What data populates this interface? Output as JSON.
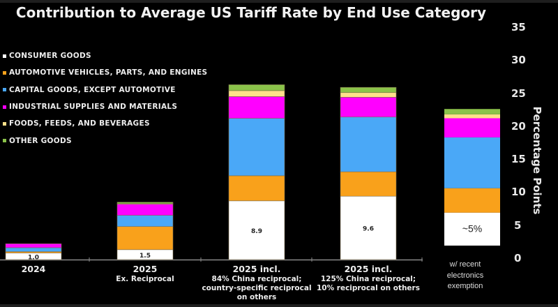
{
  "chart_data": {
    "type": "bar",
    "stacked": true,
    "title": "Contribution to Average US Tariff Rate by End Use Category",
    "ylabel": "Percentage Points",
    "xlabel": "",
    "ylim": [
      0,
      35
    ],
    "yticks": [
      "0",
      "5",
      "10",
      "15",
      "20",
      "25",
      "30",
      "35"
    ],
    "grid": false,
    "legend_position": "top-left",
    "categories": [
      {
        "main": "2024",
        "sub": []
      },
      {
        "main": "2025",
        "sub": [
          "Ex. Reciprocal"
        ]
      },
      {
        "main": "2025 incl.",
        "sub": [
          "84% China reciprocal;",
          "country-specific reciprocal",
          "on others"
        ]
      },
      {
        "main": "2025 incl.",
        "sub": [
          "125% China reciprocal;",
          "10% reciprocal on others"
        ]
      },
      {
        "main": "",
        "sub": [
          "w/ recent",
          "electronics",
          "exemption"
        ]
      }
    ],
    "series": [
      {
        "name": "CONSUMER GOODS",
        "color": "#ffffff",
        "values": [
          1.0,
          1.5,
          8.9,
          9.6,
          5.0
        ]
      },
      {
        "name": "AUTOMOTIVE VEHICLES, PARTS, AND ENGINES",
        "color": "#f9a11b",
        "values": [
          0.2,
          3.5,
          3.8,
          3.7,
          3.7
        ]
      },
      {
        "name": "CAPITAL GOODS, EXCEPT AUTOMOTIVE",
        "color": "#4aa8f7",
        "values": [
          0.6,
          1.7,
          8.7,
          8.3,
          7.7
        ]
      },
      {
        "name": "INDUSTRIAL SUPPLIES AND MATERIALS",
        "color": "#ff00ff",
        "values": [
          0.6,
          1.7,
          3.3,
          3.0,
          2.9
        ]
      },
      {
        "name": "FOODS, FEEDS, AND BEVERAGES",
        "color": "#ffe08a",
        "values": [
          0.0,
          0.1,
          0.9,
          0.7,
          0.6
        ]
      },
      {
        "name": "OTHER GOODS",
        "color": "#8bc34a",
        "values": [
          0.0,
          0.2,
          0.9,
          0.8,
          0.8
        ]
      }
    ],
    "data_labels": [
      "1.0",
      "1.5",
      "8.9",
      "9.6",
      "~5%"
    ]
  }
}
